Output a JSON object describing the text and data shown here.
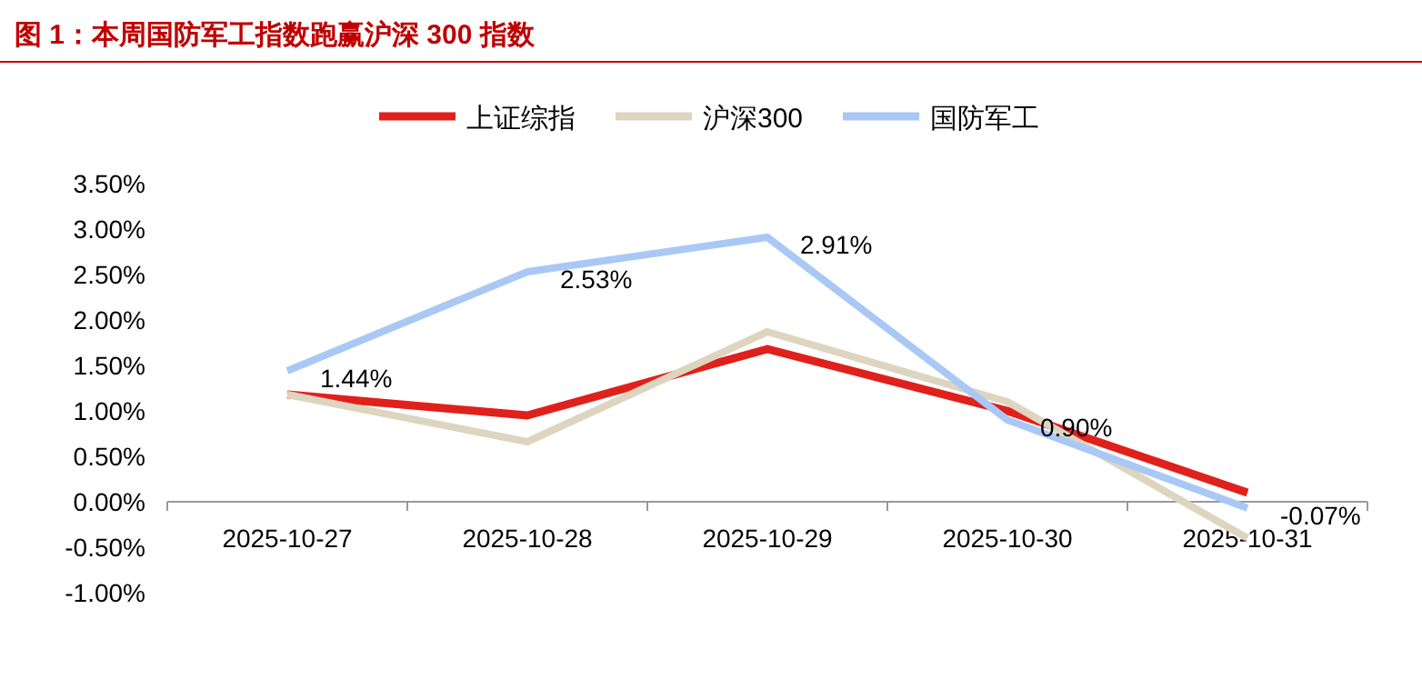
{
  "chart_data": {
    "type": "line",
    "title": "图 1：本周国防军工指数跑赢沪深 300 指数",
    "categories": [
      "2025-10-27",
      "2025-10-28",
      "2025-10-29",
      "2025-10-30",
      "2025-10-31"
    ],
    "series": [
      {
        "name": "上证综指",
        "color": "#e0201b",
        "values": [
          1.18,
          0.95,
          1.68,
          1.0,
          0.1
        ]
      },
      {
        "name": "沪深300",
        "color": "#ddd5bf",
        "values": [
          1.18,
          0.66,
          1.87,
          1.1,
          -0.4
        ]
      },
      {
        "name": "国防军工",
        "color": "#a9c8f5",
        "values": [
          1.44,
          2.53,
          2.91,
          0.9,
          -0.07
        ],
        "value_labels": [
          "1.44%",
          "2.53%",
          "2.91%",
          "0.90%",
          "-0.07%"
        ]
      }
    ],
    "ylim": [
      -1.0,
      3.5
    ],
    "yticks": [
      {
        "value": -1.0,
        "label": "-1.00%"
      },
      {
        "value": -0.5,
        "label": "-0.50%"
      },
      {
        "value": 0,
        "label": "0.00%"
      },
      {
        "value": 0.5,
        "label": "0.50%"
      },
      {
        "value": 1.0,
        "label": "1.00%"
      },
      {
        "value": 1.5,
        "label": "1.50%"
      },
      {
        "value": 2.0,
        "label": "2.00%"
      },
      {
        "value": 2.5,
        "label": "2.50%"
      },
      {
        "value": 3.0,
        "label": "3.00%"
      },
      {
        "value": 3.5,
        "label": "3.50%"
      }
    ],
    "grid": false,
    "legend": "top",
    "marker": "none",
    "line_style": "solid"
  }
}
